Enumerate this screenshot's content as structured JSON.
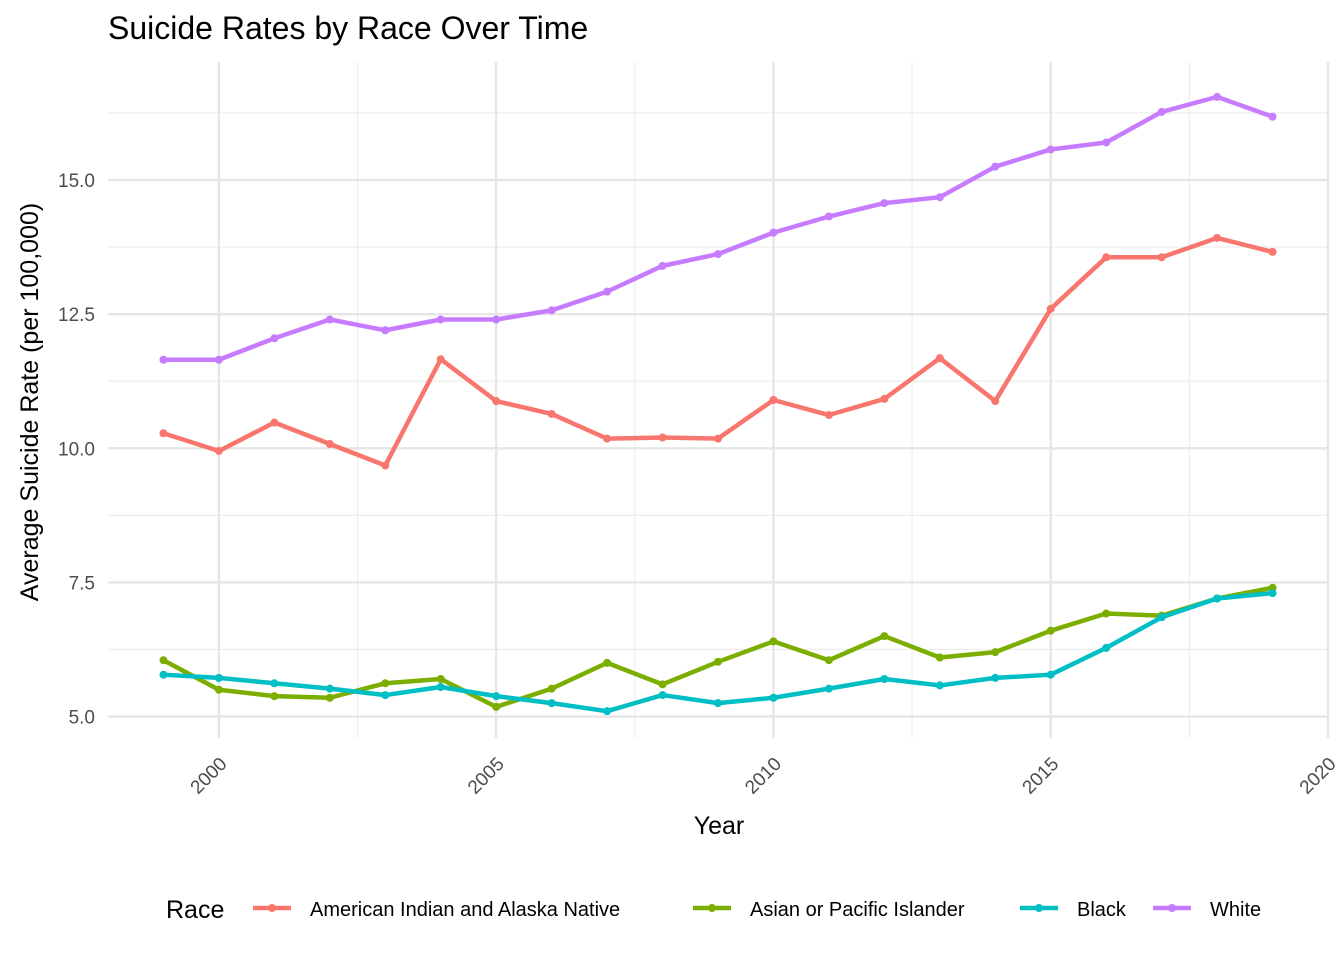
{
  "chart_data": {
    "type": "line",
    "title": "Suicide Rates by Race Over Time",
    "xlabel": "Year",
    "ylabel": "Average Suicide Rate (per 100,000)",
    "xlim": [
      1998,
      2020
    ],
    "ylim": [
      4.6,
      17.2
    ],
    "x_ticks": [
      2000,
      2005,
      2010,
      2015,
      2020
    ],
    "y_ticks": [
      5.0,
      7.5,
      10.0,
      12.5,
      15.0
    ],
    "x_tick_labels": [
      "2000",
      "2005",
      "2010",
      "2015",
      "2020"
    ],
    "y_tick_labels": [
      "5.0",
      "7.5",
      "10.0",
      "12.5",
      "15.0"
    ],
    "grid": true,
    "legend_position": "bottom",
    "legend_title": "Race",
    "x": [
      1999,
      2000,
      2001,
      2002,
      2003,
      2004,
      2005,
      2006,
      2007,
      2008,
      2009,
      2010,
      2011,
      2012,
      2013,
      2014,
      2015,
      2016,
      2017,
      2018,
      2019
    ],
    "series": [
      {
        "name": "American Indian and Alaska Native",
        "color": "#F8766D",
        "values": [
          10.28,
          9.95,
          10.48,
          10.08,
          9.68,
          11.66,
          10.88,
          10.64,
          10.18,
          10.2,
          10.18,
          10.9,
          10.62,
          10.92,
          11.68,
          10.88,
          12.6,
          13.56,
          13.56,
          13.92,
          13.66
        ]
      },
      {
        "name": "Asian or Pacific Islander",
        "color": "#7CAE00",
        "values": [
          6.05,
          5.5,
          5.38,
          5.35,
          5.62,
          5.7,
          5.18,
          5.52,
          6.0,
          5.6,
          6.02,
          6.4,
          6.05,
          6.5,
          6.1,
          6.2,
          6.6,
          6.92,
          6.88,
          7.2,
          7.4
        ]
      },
      {
        "name": "Black",
        "color": "#00BFC4",
        "values": [
          5.78,
          5.72,
          5.62,
          5.52,
          5.4,
          5.55,
          5.38,
          5.25,
          5.1,
          5.4,
          5.25,
          5.35,
          5.52,
          5.7,
          5.58,
          5.72,
          5.78,
          6.28,
          6.85,
          7.2,
          7.3
        ]
      },
      {
        "name": "White",
        "color": "#C77CFF",
        "values": [
          11.65,
          11.65,
          12.05,
          12.4,
          12.2,
          12.4,
          12.4,
          12.57,
          12.92,
          13.4,
          13.62,
          14.02,
          14.32,
          14.57,
          14.68,
          15.25,
          15.57,
          15.7,
          16.27,
          16.55,
          16.18
        ]
      }
    ]
  }
}
